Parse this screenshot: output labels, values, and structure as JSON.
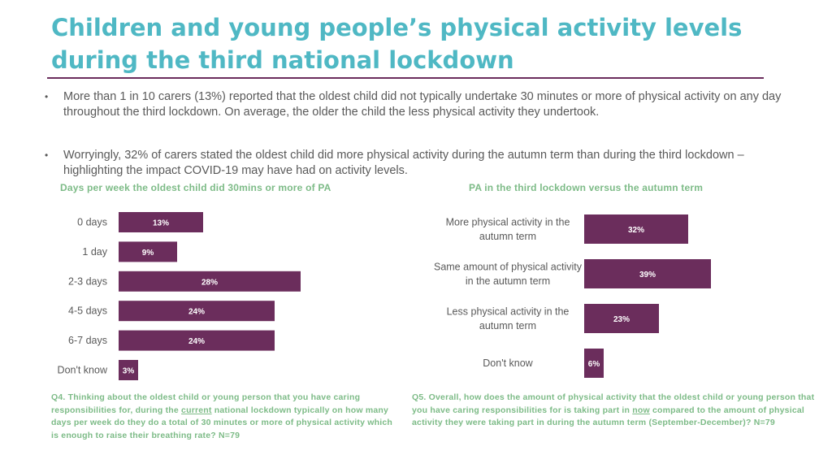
{
  "slide": {
    "title": "Children and young people’s physical activity levels during the third national lockdown",
    "bullets": [
      "More than 1 in 10 carers (13%) reported that the oldest child did not typically undertake 30 minutes or more of physical activity on any day throughout the third lockdown. On average, the older the child the less physical activity they undertook.",
      "Worryingly, 32% of carers stated the oldest child did more physical activity during the autumn term than during the third lockdown – highlighting the impact COVID-19 may have had on activity levels."
    ],
    "bullet_symbol": "•",
    "colors": {
      "title": "#4fb8c4",
      "bar": "#6b2d5c",
      "accent_text": "#7dbb87",
      "body_text": "#595959"
    }
  },
  "footnotes": {
    "q4": {
      "a": "Q4. Thinking about the oldest child or young person that you have caring responsibilities for, during the ",
      "u": "current",
      "b": " national lockdown typically on how many days per week do they do a total of 30 minutes or more of physical activity which is enough to raise their breathing rate? N=79"
    },
    "q5": {
      "a": "Q5. Overall, how does the amount of physical activity that the oldest child or young person that you have caring responsibilities for is taking part in ",
      "u": "now",
      "b": " compared to the amount of physical activity they were taking part in during the autumn term (September-December)? N=79"
    }
  },
  "chart_data": [
    {
      "type": "bar",
      "orientation": "horizontal",
      "title": "Days per week the oldest child did 30mins or more of PA",
      "categories": [
        "0 days",
        "1 day",
        "2-3 days",
        "4-5 days",
        "6-7 days",
        "Don't know"
      ],
      "values": [
        13,
        9,
        28,
        24,
        24,
        3
      ],
      "labels": [
        "13%",
        "9%",
        "28%",
        "24%",
        "24%",
        "3%"
      ],
      "unit": "%"
    },
    {
      "type": "bar",
      "orientation": "horizontal",
      "title": "PA in the third lockdown versus the autumn term",
      "categories": [
        [
          "More physical activity in the",
          "autumn term"
        ],
        [
          "Same amount of physical activity",
          "in the autumn term"
        ],
        [
          "Less physical activity in the",
          "autumn term"
        ],
        [
          "Don't know"
        ]
      ],
      "values": [
        32,
        39,
        23,
        6
      ],
      "labels": [
        "32%",
        "39%",
        "23%",
        "6%"
      ],
      "unit": "%"
    }
  ]
}
